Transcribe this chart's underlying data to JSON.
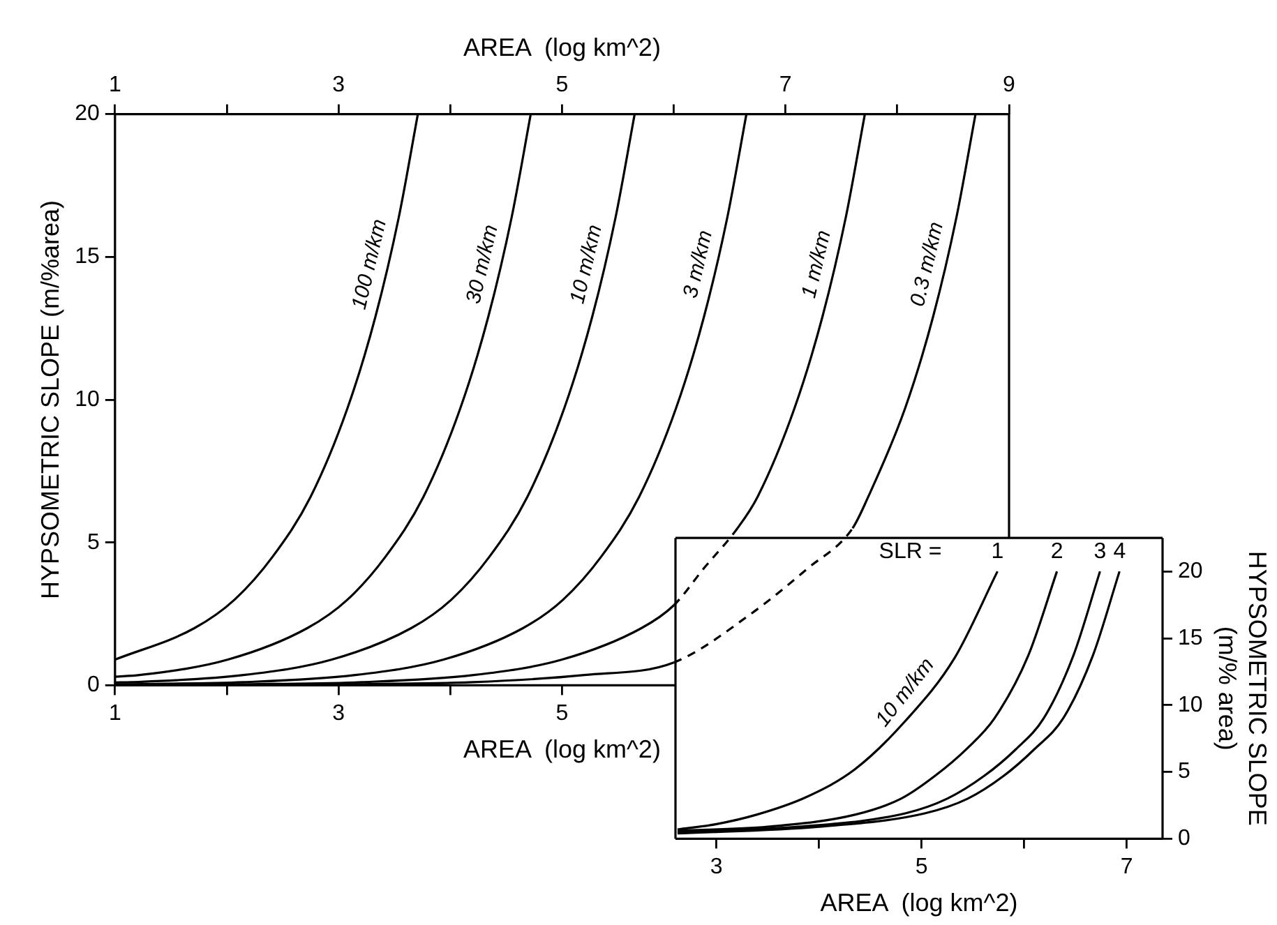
{
  "chart_data": [
    {
      "type": "line",
      "xlabel": "AREA  (log km^2)",
      "x2label": "AREA  (log km^2)",
      "ylabel": "HYPSOMETRIC SLOPE (m/%area)",
      "xlim": [
        1,
        9
      ],
      "xticks": [
        1,
        {
          "value": 2,
          "label": null
        },
        3,
        {
          "value": 4,
          "label": null
        },
        5
      ],
      "x2lim": [
        1,
        9
      ],
      "x2ticks": [
        1,
        {
          "value": 2,
          "label": null
        },
        3,
        {
          "value": 4,
          "label": null
        },
        5,
        {
          "value": 6,
          "label": null
        },
        7,
        {
          "value": 8,
          "label": null
        },
        9
      ],
      "ylim": [
        0,
        20
      ],
      "yticks": [
        0,
        5,
        10,
        15,
        20
      ],
      "series": [
        {
          "name": "100 m/km",
          "color": "#000000",
          "x": [
            1,
            1.71,
            2.07,
            2.41,
            2.75,
            3.08,
            3.33,
            3.54,
            3.71
          ],
          "values": [
            0.9,
            2.0,
            3.0,
            4.5,
            6.6,
            9.7,
            12.9,
            16.4,
            20
          ]
        },
        {
          "name": "30 m/km",
          "color": "#000000",
          "x": [
            1,
            1.22,
            2.01,
            2.72,
            3.08,
            3.42,
            3.76,
            4.09,
            4.34,
            4.55,
            4.72
          ],
          "values": [
            0.3,
            0.36,
            0.9,
            2.0,
            3.0,
            4.5,
            6.6,
            9.7,
            12.9,
            16.4,
            20
          ]
        },
        {
          "name": "10 m/km",
          "color": "#000000",
          "x": [
            1,
            1.15,
            2.15,
            2.94,
            3.65,
            4.01,
            4.35,
            4.69,
            5.02,
            5.27,
            5.48,
            5.65
          ],
          "values": [
            0.1,
            0.11,
            0.36,
            0.9,
            2.0,
            3.0,
            4.5,
            6.6,
            9.7,
            12.9,
            16.4,
            20
          ]
        },
        {
          "name": "3 m/km",
          "color": "#000000",
          "x": [
            1,
            1.15,
            2.15,
            3.15,
            3.94,
            4.65,
            5.01,
            5.35,
            5.69,
            6.02,
            6.27,
            6.48,
            6.65
          ],
          "values": [
            0.03,
            0.04,
            0.11,
            0.36,
            0.9,
            2.0,
            3.0,
            4.5,
            6.6,
            9.7,
            12.9,
            16.4,
            20
          ]
        },
        {
          "name": "1 m/km",
          "color": "#000000",
          "x": [
            1,
            2.21,
            3.21,
            4.21,
            5.0,
            5.71,
            6.0,
            6.27,
            6.57,
            6.75,
            7.08,
            7.33,
            7.54,
            7.71
          ],
          "values": [
            0.02,
            0.04,
            0.11,
            0.36,
            0.9,
            2.0,
            2.8,
            4.1,
            5.5,
            6.6,
            9.7,
            12.9,
            16.4,
            20
          ]
        },
        {
          "name": "0.3 m/km",
          "color": "#000000",
          "x": [
            1,
            2.2,
            3.2,
            4.2,
            5.2,
            6.0,
            6.69,
            7.2,
            7.6,
            7.74,
            8.07,
            8.32,
            8.53,
            8.7
          ],
          "values": [
            0.01,
            0.02,
            0.04,
            0.11,
            0.36,
            0.8,
            2.5,
            4.1,
            5.5,
            6.6,
            9.7,
            12.9,
            16.4,
            20
          ]
        }
      ]
    },
    {
      "type": "line",
      "xlabel": "AREA  (log km^2)",
      "y2label": "HYPSOMETRIC SLOPE (m/% area)",
      "xlim": [
        2.6,
        7.35
      ],
      "xticks": [
        3,
        {
          "value": 4,
          "label": null
        },
        5,
        {
          "value": 6,
          "label": null
        },
        7
      ],
      "y2lim": [
        0,
        22.5
      ],
      "y2ticks": [
        0,
        5,
        10,
        15,
        20
      ],
      "annotations": [
        "SLR =",
        "10 m/km"
      ],
      "series": [
        {
          "name": "1",
          "color": "#000000",
          "axis": "y2",
          "x": [
            2.62,
            3.0,
            3.39,
            3.87,
            4.35,
            4.84,
            5.32,
            5.74
          ],
          "values": [
            0.7,
            1.1,
            1.8,
            3.1,
            5.2,
            8.8,
            13.5,
            20
          ]
        },
        {
          "name": "2",
          "color": "#000000",
          "axis": "y2",
          "x": [
            2.62,
            3.5,
            4.35,
            4.8,
            5.13,
            5.45,
            5.71,
            6.04,
            6.32
          ],
          "values": [
            0.6,
            0.9,
            1.8,
            3.0,
            4.7,
            6.8,
            9.0,
            13.7,
            20
          ]
        },
        {
          "name": "3",
          "color": "#000000",
          "axis": "y2",
          "x": [
            2.62,
            3.8,
            4.84,
            5.25,
            5.61,
            5.92,
            6.19,
            6.48,
            6.74
          ],
          "values": [
            0.5,
            0.9,
            1.9,
            3.0,
            4.7,
            6.7,
            9.0,
            13.7,
            20
          ]
        },
        {
          "name": "4",
          "color": "#000000",
          "axis": "y2",
          "x": [
            2.62,
            4.0,
            5.03,
            5.45,
            5.8,
            6.1,
            6.38,
            6.67,
            6.93
          ],
          "values": [
            0.4,
            0.9,
            1.9,
            3.0,
            4.7,
            6.7,
            9.0,
            13.7,
            20
          ]
        }
      ]
    }
  ]
}
